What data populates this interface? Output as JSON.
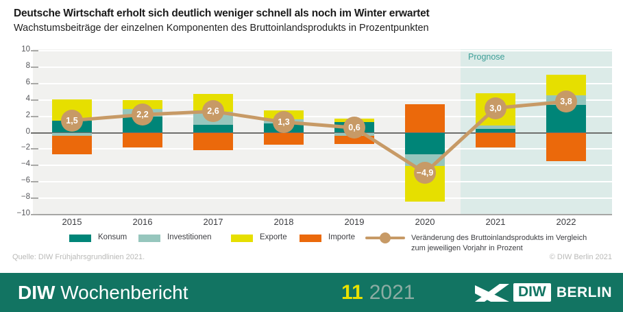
{
  "header": {
    "title": "Deutsche Wirtschaft erholt sich deutlich weniger schnell als noch im Winter erwartet",
    "subtitle": "Wachstumsbeiträge der einzelnen Komponenten des Bruttoinlandsprodukts in Prozentpunkten"
  },
  "chart_data": {
    "type": "bar",
    "subtype": "stacked-bars-with-line-overlay",
    "categories": [
      "2015",
      "2016",
      "2017",
      "2018",
      "2019",
      "2020",
      "2021",
      "2022"
    ],
    "series": [
      {
        "name": "Konsum",
        "color": "#008578",
        "values": [
          1.5,
          2.0,
          1.0,
          1.1,
          1.3,
          -2.6,
          0.5,
          3.4
        ]
      },
      {
        "name": "Investitionen",
        "color": "#96c6bd",
        "values": [
          -0.4,
          0.9,
          1.55,
          0.55,
          -0.35,
          -1.5,
          0.4,
          1.2
        ]
      },
      {
        "name": "Exporte",
        "color": "#e6df00",
        "values": [
          2.6,
          1.1,
          2.15,
          1.1,
          0.45,
          -4.3,
          3.9,
          2.45
        ]
      },
      {
        "name": "Importe",
        "color": "#eb690b",
        "values": [
          -2.2,
          -1.8,
          -2.1,
          -1.5,
          -1.0,
          3.45,
          -1.8,
          -3.45
        ]
      }
    ],
    "line_series": {
      "name": "Veränderung des Bruttoinlandsprodukts im Vergleich zum jeweiligen Vorjahr in Prozent",
      "color": "#c79a66",
      "values": [
        1.5,
        2.2,
        2.6,
        1.3,
        0.6,
        -4.9,
        3.0,
        3.8
      ],
      "labels": [
        "1,5",
        "2,2",
        "2,6",
        "1,3",
        "0,6",
        "−4,9",
        "3,0",
        "3,8"
      ]
    },
    "ylim": [
      -10,
      10
    ],
    "yticks": [
      -10,
      -8,
      -6,
      -4,
      -2,
      0,
      2,
      4,
      6,
      8,
      10
    ],
    "grid": true,
    "plot_bg": "#f1f1ef",
    "gridline_color": "#ffffff",
    "zeroline_color": "#6e6e6c",
    "axisline_color": "#a6a6a4",
    "legend_position": "bottom",
    "prognose": {
      "label": "Prognose",
      "from_category": "2021",
      "band_color": "#dcebe8",
      "label_color": "#3d9e97"
    }
  },
  "legend": {
    "line_label_line1": "Veränderung des Bruttoinlandsprodukts im Vergleich",
    "line_label_line2": "zum jeweiligen Vorjahr in Prozent"
  },
  "source": {
    "left": "Quelle: DIW Frühjahrsgrundlinien 2021.",
    "right": "© DIW Berlin 2021"
  },
  "footer": {
    "bg_color": "#127462",
    "brand_bold": "DIW",
    "brand_rest": "Wochenbericht",
    "issue_number": "11",
    "issue_number_color": "#e9e100",
    "issue_year": "2021",
    "logo_diw": "DIW",
    "logo_berlin": "BERLIN"
  }
}
